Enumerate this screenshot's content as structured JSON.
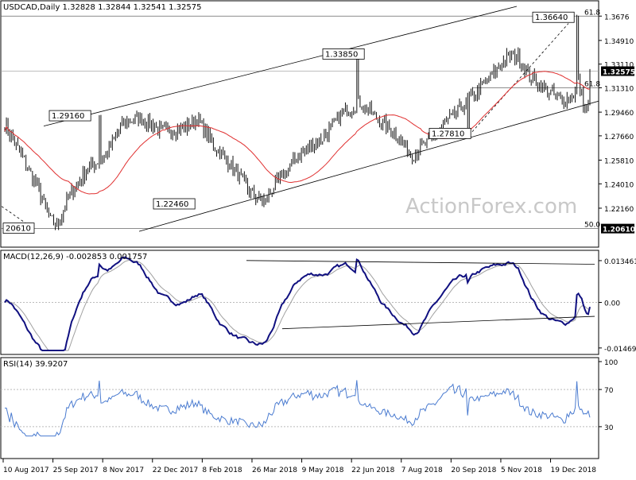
{
  "watermark": "ActionForex.com",
  "colors": {
    "price_bar": "#111111",
    "ma": "#e03030",
    "macd": "#101080",
    "macd_signal": "#a0a0a0",
    "rsi": "#4a7bd0",
    "grid": "#d8d8d8",
    "trendline": "#000000",
    "last_price_bg": "#000000",
    "last_price_fg": "#ffffff"
  },
  "chart_data": [
    {
      "type": "candlestick",
      "title": "USDCAD,Daily  1.32828  1.32844  1.32541  1.32575",
      "ylim": [
        1.195,
        1.375
      ],
      "yticks": [
        {
          "value": 1.3676,
          "label": "1.3676"
        },
        {
          "value": 1.3491,
          "label": "1.34910"
        },
        {
          "value": 1.3311,
          "label": "1.33110"
        },
        {
          "value": 1.3131,
          "label": "1.31310"
        },
        {
          "value": 1.2946,
          "label": "1.29460"
        },
        {
          "value": 1.2766,
          "label": "1.27660"
        },
        {
          "value": 1.2581,
          "label": "1.25810"
        },
        {
          "value": 1.2401,
          "label": "1.24010"
        },
        {
          "value": 1.2216,
          "label": "1.22160"
        }
      ],
      "last_price": {
        "value": 1.32575,
        "label": "1.32575"
      },
      "level_label": {
        "value": 1.2061,
        "label": "1.20610"
      },
      "pivots": [
        {
          "label": "1.29160",
          "x": "Oct 2017",
          "y": 1.2916
        },
        {
          "label": "1.22460",
          "x": "Jan 2018",
          "y": 1.2246
        },
        {
          "label": "1.33850",
          "x": "Jun 2018",
          "y": 1.3385
        },
        {
          "label": "1.27810",
          "x": "Oct 2018",
          "y": 1.2781
        },
        {
          "label": "1.36640",
          "x": "Dec 2018",
          "y": 1.3664
        },
        {
          "label": "20610",
          "x": "Aug 2017",
          "y": 1.2061
        }
      ],
      "fib_labels": [
        {
          "label": "61.8",
          "y": 1.3676
        },
        {
          "label": "61.8",
          "y": 1.3131
        },
        {
          "label": "50.0",
          "y": 1.2061
        }
      ],
      "moving_average": "red line",
      "grid": false
    },
    {
      "type": "line",
      "title": "MACD(12,26,9) -0.002853 0.001757",
      "ylim": [
        -0.0155,
        0.0155
      ],
      "yticks": [
        {
          "value": 0.013461,
          "label": "0.013461"
        },
        {
          "value": 0.0,
          "label": "0.00"
        },
        {
          "value": -0.014694,
          "label": "-0.014694"
        }
      ],
      "series": [
        {
          "name": "MACD"
        },
        {
          "name": "Signal"
        }
      ]
    },
    {
      "type": "line",
      "title": "RSI(14) 39.9207",
      "ylim": [
        0,
        100
      ],
      "yticks": [
        {
          "value": 100,
          "label": "100"
        },
        {
          "value": 70,
          "label": "70"
        },
        {
          "value": 30,
          "label": "30"
        }
      ]
    },
    {
      "type": "x_axis",
      "xticks": [
        "10 Aug 2017",
        "25 Sep 2017",
        "8 Nov 2017",
        "22 Dec 2017",
        "8 Feb 2018",
        "26 Mar 2018",
        "9 May 2018",
        "22 Jun 2018",
        "7 Aug 2018",
        "20 Sep 2018",
        "5 Nov 2018",
        "19 Dec 2018"
      ]
    }
  ]
}
